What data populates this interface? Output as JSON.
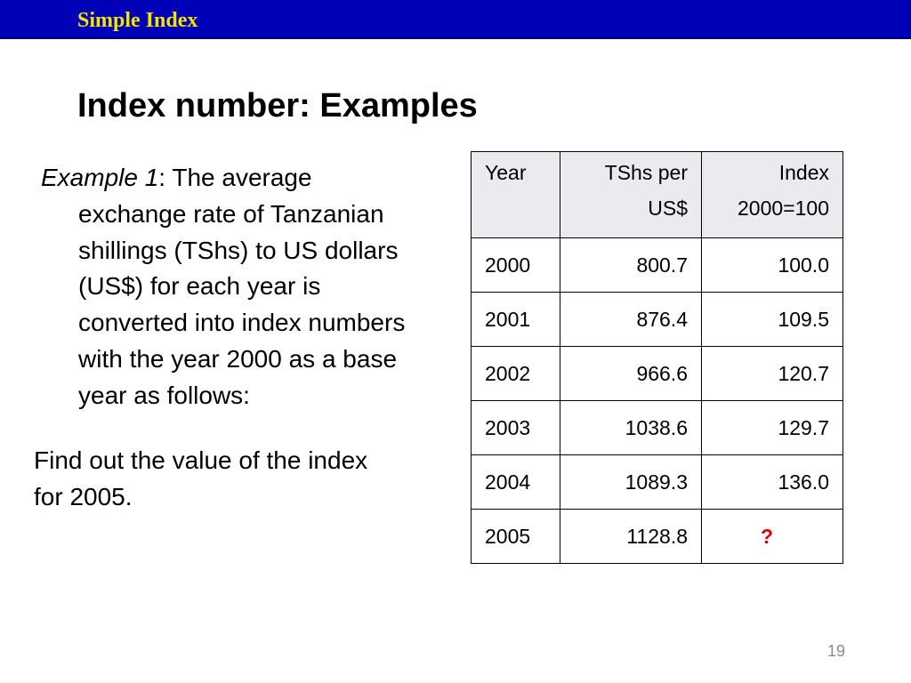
{
  "header": {
    "title": "Simple Index"
  },
  "heading": "Index number: Examples",
  "example": {
    "label": "Example 1",
    "line1_rest": ": The average",
    "lines": [
      "exchange rate of Tanzanian",
      "shillings (TShs) to US dollars",
      "(US$) for each year is",
      "converted into index numbers",
      "with the year 2000 as a base",
      "year as follows:"
    ]
  },
  "question": {
    "lines": [
      "Find out the value of the index",
      "for 2005."
    ]
  },
  "table": {
    "headers": {
      "year": "Year",
      "tshs": [
        "TShs per",
        "US$"
      ],
      "index": [
        "Index",
        "2000=100"
      ]
    },
    "rows": [
      {
        "year": "2000",
        "tshs": "800.7",
        "index": "100.0"
      },
      {
        "year": "2001",
        "tshs": "876.4",
        "index": "109.5"
      },
      {
        "year": "2002",
        "tshs": "966.6",
        "index": "120.7"
      },
      {
        "year": "2003",
        "tshs": "1038.6",
        "index": "129.7"
      },
      {
        "year": "2004",
        "tshs": "1089.3",
        "index": "136.0"
      },
      {
        "year": "2005",
        "tshs": "1128.8",
        "index": "?"
      }
    ]
  },
  "colors": {
    "header_bg": "#0000b8",
    "header_text": "#f2e600",
    "question_mark": "#e00000"
  },
  "page_number": "19"
}
